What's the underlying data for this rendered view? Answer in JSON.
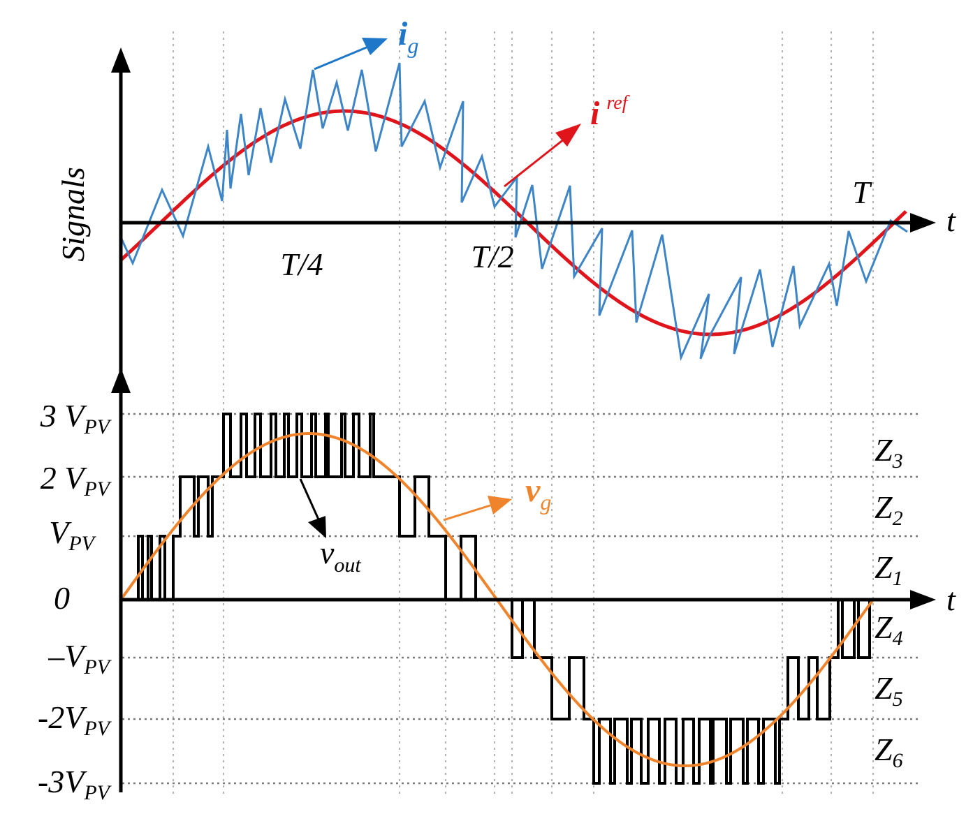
{
  "top_panel": {
    "y_axis_label": "Signals",
    "t_axis_label": "t",
    "time_labels": {
      "quarter": "T/4",
      "half": "T/2",
      "full": "T"
    },
    "ig_label": {
      "main": "i",
      "sub": "g"
    },
    "iref_label": {
      "main": "i",
      "sup": "ref"
    }
  },
  "bottom_panel": {
    "t_axis_label": "t",
    "levels": [
      {
        "pre": "3 V",
        "sub": "PV"
      },
      {
        "pre": "2 V",
        "sub": "PV"
      },
      {
        "pre": "V",
        "sub": "PV"
      },
      {
        "pre": "0",
        "sub": ""
      },
      {
        "pre": "–V",
        "sub": "PV"
      },
      {
        "pre": "-2V",
        "sub": "PV"
      },
      {
        "pre": "-3V",
        "sub": "PV"
      }
    ],
    "zones": [
      {
        "main": "Z",
        "sub": "3"
      },
      {
        "main": "Z",
        "sub": "2"
      },
      {
        "main": "Z",
        "sub": "1"
      },
      {
        "main": "Z",
        "sub": "4"
      },
      {
        "main": "Z",
        "sub": "5"
      },
      {
        "main": "Z",
        "sub": "6"
      }
    ],
    "vout_label": {
      "main": "v",
      "sub": "out"
    },
    "vg_label": {
      "main": "v",
      "sub": "g"
    }
  },
  "colors": {
    "i_ref": "#e0141b",
    "i_g": "#3d85c6",
    "i_g_label": "#1f77c9",
    "v_g": "#f0842c",
    "v_out": "#000000",
    "axes": "#000000"
  }
}
